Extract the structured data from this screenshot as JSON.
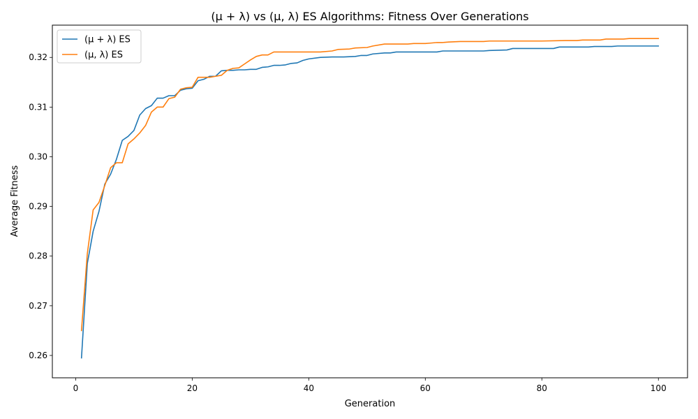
{
  "chart_data": {
    "type": "line",
    "title": "(μ + λ) vs (μ, λ) ES Algorithms: Fitness Over Generations",
    "xlabel": "Generation",
    "ylabel": "Average Fitness",
    "xlim": [
      -4,
      105
    ],
    "ylim": [
      0.2555,
      0.3265
    ],
    "xticks": [
      0,
      20,
      40,
      60,
      80,
      100
    ],
    "xtick_labels": [
      "0",
      "20",
      "40",
      "60",
      "80",
      "100"
    ],
    "yticks": [
      0.26,
      0.27,
      0.28,
      0.29,
      0.3,
      0.31,
      0.32
    ],
    "ytick_labels": [
      "0.26",
      "0.27",
      "0.28",
      "0.29",
      "0.30",
      "0.31",
      "0.32"
    ],
    "grid": false,
    "legend_position": "top-left",
    "series": [
      {
        "name": "(μ + λ) ES",
        "color": "#1f77b4",
        "points": [
          [
            1,
            0.2595
          ],
          [
            2,
            0.2785
          ],
          [
            3,
            0.285
          ],
          [
            4,
            0.289
          ],
          [
            5,
            0.2945
          ],
          [
            6,
            0.2965
          ],
          [
            7,
            0.2995
          ],
          [
            8,
            0.3033
          ],
          [
            9,
            0.3041
          ],
          [
            10,
            0.3053
          ],
          [
            11,
            0.3084
          ],
          [
            12,
            0.3097
          ],
          [
            13,
            0.3103
          ],
          [
            14,
            0.3118
          ],
          [
            15,
            0.3118
          ],
          [
            16,
            0.3123
          ],
          [
            17,
            0.3123
          ],
          [
            18,
            0.3134
          ],
          [
            19,
            0.3137
          ],
          [
            20,
            0.3138
          ],
          [
            21,
            0.3153
          ],
          [
            22,
            0.3156
          ],
          [
            23,
            0.3162
          ],
          [
            24,
            0.3162
          ],
          [
            25,
            0.3173
          ],
          [
            26,
            0.3174
          ],
          [
            27,
            0.3174
          ],
          [
            28,
            0.3175
          ],
          [
            29,
            0.3175
          ],
          [
            30,
            0.3176
          ],
          [
            31,
            0.3176
          ],
          [
            32,
            0.318
          ],
          [
            33,
            0.3181
          ],
          [
            34,
            0.3184
          ],
          [
            35,
            0.3184
          ],
          [
            36,
            0.3185
          ],
          [
            37,
            0.3188
          ],
          [
            38,
            0.3189
          ],
          [
            39,
            0.3194
          ],
          [
            40,
            0.3197
          ],
          [
            42,
            0.32
          ],
          [
            44,
            0.3201
          ],
          [
            46,
            0.3201
          ],
          [
            48,
            0.3202
          ],
          [
            49,
            0.3204
          ],
          [
            50,
            0.3204
          ],
          [
            51,
            0.3207
          ],
          [
            53,
            0.3209
          ],
          [
            54,
            0.3209
          ],
          [
            55,
            0.3211
          ],
          [
            60,
            0.3211
          ],
          [
            62,
            0.3211
          ],
          [
            63,
            0.3213
          ],
          [
            70,
            0.3213
          ],
          [
            71,
            0.3214
          ],
          [
            74,
            0.3215
          ],
          [
            75,
            0.3218
          ],
          [
            82,
            0.3218
          ],
          [
            83,
            0.3221
          ],
          [
            88,
            0.3221
          ],
          [
            89,
            0.3222
          ],
          [
            92,
            0.3222
          ],
          [
            93,
            0.3223
          ],
          [
            100,
            0.3223
          ]
        ]
      },
      {
        "name": "(μ, λ) ES",
        "color": "#ff7f0e",
        "points": [
          [
            1,
            0.265
          ],
          [
            2,
            0.2805
          ],
          [
            3,
            0.2893
          ],
          [
            4,
            0.2908
          ],
          [
            5,
            0.2942
          ],
          [
            6,
            0.2978
          ],
          [
            7,
            0.2988
          ],
          [
            8,
            0.2988
          ],
          [
            9,
            0.3026
          ],
          [
            10,
            0.3036
          ],
          [
            11,
            0.3048
          ],
          [
            12,
            0.3063
          ],
          [
            13,
            0.309
          ],
          [
            14,
            0.31
          ],
          [
            15,
            0.31
          ],
          [
            16,
            0.3117
          ],
          [
            17,
            0.312
          ],
          [
            18,
            0.3136
          ],
          [
            19,
            0.3139
          ],
          [
            20,
            0.314
          ],
          [
            21,
            0.316
          ],
          [
            22,
            0.316
          ],
          [
            23,
            0.316
          ],
          [
            24,
            0.3162
          ],
          [
            25,
            0.3164
          ],
          [
            26,
            0.3174
          ],
          [
            27,
            0.3178
          ],
          [
            28,
            0.3179
          ],
          [
            29,
            0.3187
          ],
          [
            30,
            0.3195
          ],
          [
            31,
            0.3202
          ],
          [
            32,
            0.3205
          ],
          [
            33,
            0.3205
          ],
          [
            34,
            0.3211
          ],
          [
            40,
            0.3211
          ],
          [
            42,
            0.3211
          ],
          [
            44,
            0.3213
          ],
          [
            45,
            0.3216
          ],
          [
            47,
            0.3217
          ],
          [
            48,
            0.3219
          ],
          [
            50,
            0.322
          ],
          [
            51,
            0.3223
          ],
          [
            53,
            0.3227
          ],
          [
            57,
            0.3227
          ],
          [
            58,
            0.3228
          ],
          [
            60,
            0.3228
          ],
          [
            61,
            0.3229
          ],
          [
            62,
            0.323
          ],
          [
            63,
            0.323
          ],
          [
            64,
            0.3231
          ],
          [
            66,
            0.3232
          ],
          [
            70,
            0.3232
          ],
          [
            71,
            0.3233
          ],
          [
            80,
            0.3233
          ],
          [
            84,
            0.3234
          ],
          [
            86,
            0.3234
          ],
          [
            87,
            0.3235
          ],
          [
            90,
            0.3235
          ],
          [
            91,
            0.3237
          ],
          [
            94,
            0.3237
          ],
          [
            95,
            0.3238
          ],
          [
            100,
            0.3238
          ]
        ]
      }
    ]
  }
}
